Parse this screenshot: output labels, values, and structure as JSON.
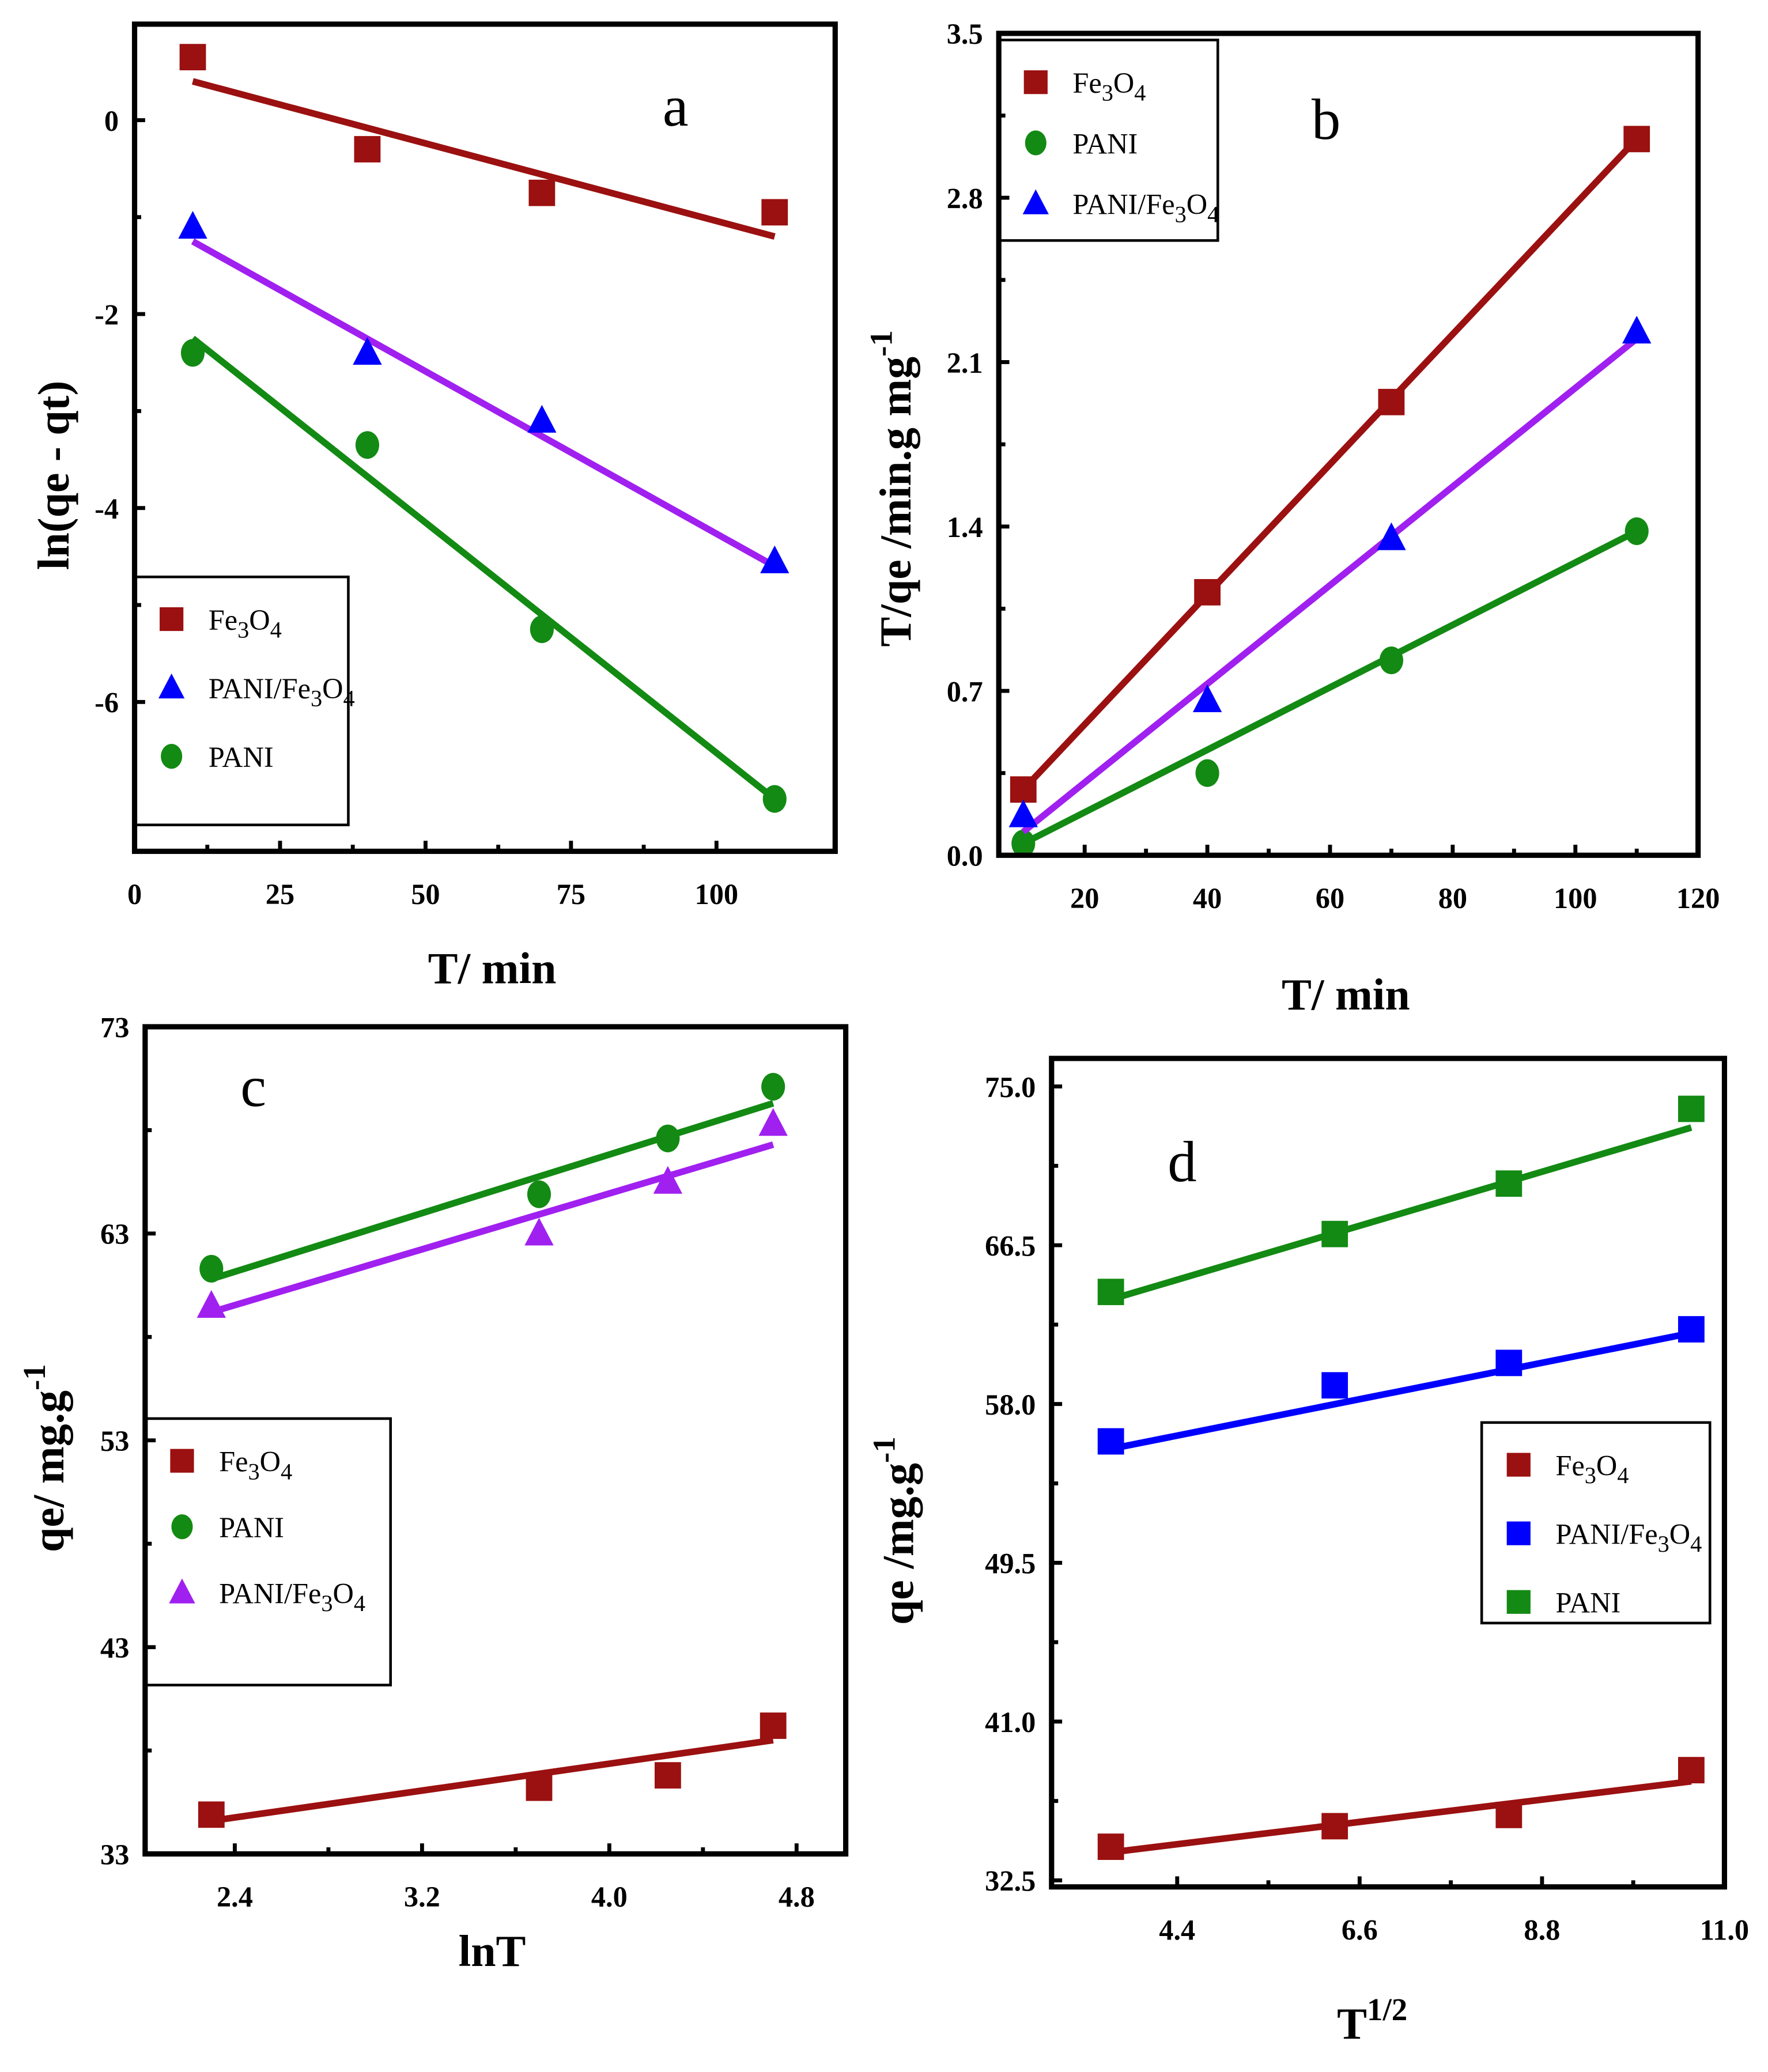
{
  "colors": {
    "fe3o4": "#9b1010",
    "pani": "#138a13",
    "pani_fe3o4_marker": "#0000ff",
    "pani_fe3o4_line": "#a020f0",
    "pani_fe3o4_line_d": "#0000ff"
  },
  "chart_data": [
    {
      "panel_label": "a",
      "type": "scatter",
      "xlabel": {
        "text": "T/ min"
      },
      "ylabel": {
        "text": "ln(qe - qt)"
      },
      "xlim": [
        0,
        120.4
      ],
      "ylim": [
        -7.54,
        0.99
      ],
      "xticks": [
        0,
        25,
        50,
        75,
        100
      ],
      "xtick_labels": [
        "0",
        "25",
        "50",
        "75",
        "100"
      ],
      "yticks": [
        0,
        -2,
        -4,
        -6
      ],
      "ytick_labels": [
        "0",
        "-2",
        "-4",
        "-6"
      ],
      "legend": "bottom-left",
      "series": [
        {
          "name": "Fe3O4",
          "marker": "square",
          "x": [
            10,
            40,
            70,
            110
          ],
          "y": [
            0.65,
            -0.3,
            -0.75,
            -0.95
          ],
          "fit": [
            [
              10,
              0.4
            ],
            [
              110,
              -1.2
            ]
          ]
        },
        {
          "name": "PANI/Fe3O4",
          "marker": "triangle",
          "x": [
            10,
            40,
            70,
            110
          ],
          "y": [
            -1.1,
            -2.4,
            -3.1,
            -4.55
          ],
          "fit": [
            [
              10,
              -1.25
            ],
            [
              110,
              -4.6
            ]
          ]
        },
        {
          "name": "PANI",
          "marker": "circle",
          "x": [
            10,
            40,
            70,
            110
          ],
          "y": [
            -2.4,
            -3.35,
            -5.25,
            -7.0
          ],
          "fit": [
            [
              10,
              -2.25
            ],
            [
              110,
              -7.0
            ]
          ]
        }
      ]
    },
    {
      "panel_label": "b",
      "type": "scatter",
      "xlabel": {
        "text": "T/ min"
      },
      "ylabel": {
        "text": "T/qe /min.g mg",
        "sup": "-1"
      },
      "xlim": [
        6,
        120
      ],
      "ylim": [
        0,
        3.5
      ],
      "xticks": [
        20,
        40,
        60,
        80,
        100,
        120
      ],
      "xtick_labels": [
        "20",
        "40",
        "60",
        "80",
        "100",
        "120"
      ],
      "yticks": [
        0,
        0.7,
        1.4,
        2.1,
        2.8,
        3.5
      ],
      "ytick_labels": [
        "0.0",
        "0.7",
        "1.4",
        "2.1",
        "2.8",
        "3.5"
      ],
      "legend": "top-left",
      "series": [
        {
          "name": "Fe3O4",
          "marker": "square",
          "x": [
            10,
            40,
            70,
            110
          ],
          "y": [
            0.28,
            1.12,
            1.93,
            3.05
          ],
          "fit": [
            [
              10,
              0.28
            ],
            [
              110,
              3.05
            ]
          ]
        },
        {
          "name": "PANI",
          "marker": "circle",
          "x": [
            10,
            40,
            70,
            110
          ],
          "y": [
            0.05,
            0.35,
            0.83,
            1.38
          ],
          "fit": [
            [
              10,
              0.05
            ],
            [
              110,
              1.38
            ]
          ]
        },
        {
          "name": "PANI/Fe3O4",
          "marker": "triangle",
          "x": [
            10,
            40,
            70,
            110
          ],
          "y": [
            0.17,
            0.66,
            1.35,
            2.23
          ],
          "fit": [
            [
              10,
              0.1
            ],
            [
              110,
              2.2
            ]
          ]
        }
      ]
    },
    {
      "panel_label": "c",
      "type": "scatter",
      "xlabel": {
        "text": "lnT"
      },
      "ylabel": {
        "text": "qe/ mg.g",
        "sup": "-1"
      },
      "xlim": [
        2.017,
        5.01
      ],
      "ylim": [
        33,
        73
      ],
      "xticks": [
        2.4,
        3.2,
        4.0,
        4.8
      ],
      "xtick_labels": [
        "2.4",
        "3.2",
        "4.0",
        "4.8"
      ],
      "yticks": [
        33,
        43,
        53,
        63,
        73
      ],
      "ytick_labels": [
        "33",
        "43",
        "53",
        "63",
        "73"
      ],
      "legend": "middle-left",
      "series": [
        {
          "name": "Fe3O4",
          "marker": "square",
          "x": [
            2.3,
            3.7,
            4.25,
            4.7
          ],
          "y": [
            34.9,
            36.2,
            36.8,
            39.2
          ],
          "fit": [
            [
              2.3,
              34.6
            ],
            [
              4.7,
              38.5
            ]
          ]
        },
        {
          "name": "PANI",
          "marker": "circle",
          "x": [
            2.3,
            3.7,
            4.25,
            4.7
          ],
          "y": [
            61.3,
            64.9,
            67.6,
            70.1
          ],
          "fit": [
            [
              2.3,
              60.8
            ],
            [
              4.7,
              69.3
            ]
          ]
        },
        {
          "name": "PANI/Fe3O4",
          "marker": "triangle-violet",
          "x": [
            2.3,
            3.7,
            4.25,
            4.7
          ],
          "y": [
            59.5,
            63.0,
            65.5,
            68.3
          ],
          "fit": [
            [
              2.3,
              59.2
            ],
            [
              4.7,
              67.3
            ]
          ]
        }
      ]
    },
    {
      "panel_label": "d",
      "type": "scatter",
      "xlabel": {
        "text": "T",
        "sup": "1/2"
      },
      "ylabel": {
        "text": "qe /mg.g",
        "sup": "-1"
      },
      "xlim": [
        2.885,
        11.0
      ],
      "ylim": [
        32.15,
        76.5
      ],
      "xticks": [
        4.4,
        6.6,
        8.8,
        11.0
      ],
      "xtick_labels": [
        "4.4",
        "6.6",
        "8.8",
        "11.0"
      ],
      "yticks": [
        32.5,
        41.0,
        49.5,
        58.0,
        66.5,
        75.0
      ],
      "ytick_labels": [
        "32.5",
        "41.0",
        "49.5",
        "58.0",
        "66.5",
        "75.0"
      ],
      "legend": "middle-right",
      "series": [
        {
          "name": "Fe3O4",
          "marker": "square",
          "x": [
            3.6,
            6.3,
            8.4,
            10.6
          ],
          "y": [
            34.3,
            35.4,
            36.0,
            38.4
          ],
          "fit": [
            [
              3.6,
              34.0
            ],
            [
              10.6,
              37.8
            ]
          ]
        },
        {
          "name": "PANI/Fe3O4",
          "marker": "square-blue",
          "x": [
            3.6,
            6.3,
            8.4,
            10.6
          ],
          "y": [
            56.0,
            59.0,
            60.2,
            62.0
          ],
          "fit": [
            [
              3.6,
              55.6
            ],
            [
              10.6,
              61.8
            ]
          ]
        },
        {
          "name": "PANI",
          "marker": "square-green",
          "x": [
            3.6,
            6.3,
            8.4,
            10.6
          ],
          "y": [
            64.0,
            67.1,
            69.8,
            73.8
          ],
          "fit": [
            [
              3.6,
              63.6
            ],
            [
              10.6,
              72.8
            ]
          ]
        }
      ]
    }
  ]
}
